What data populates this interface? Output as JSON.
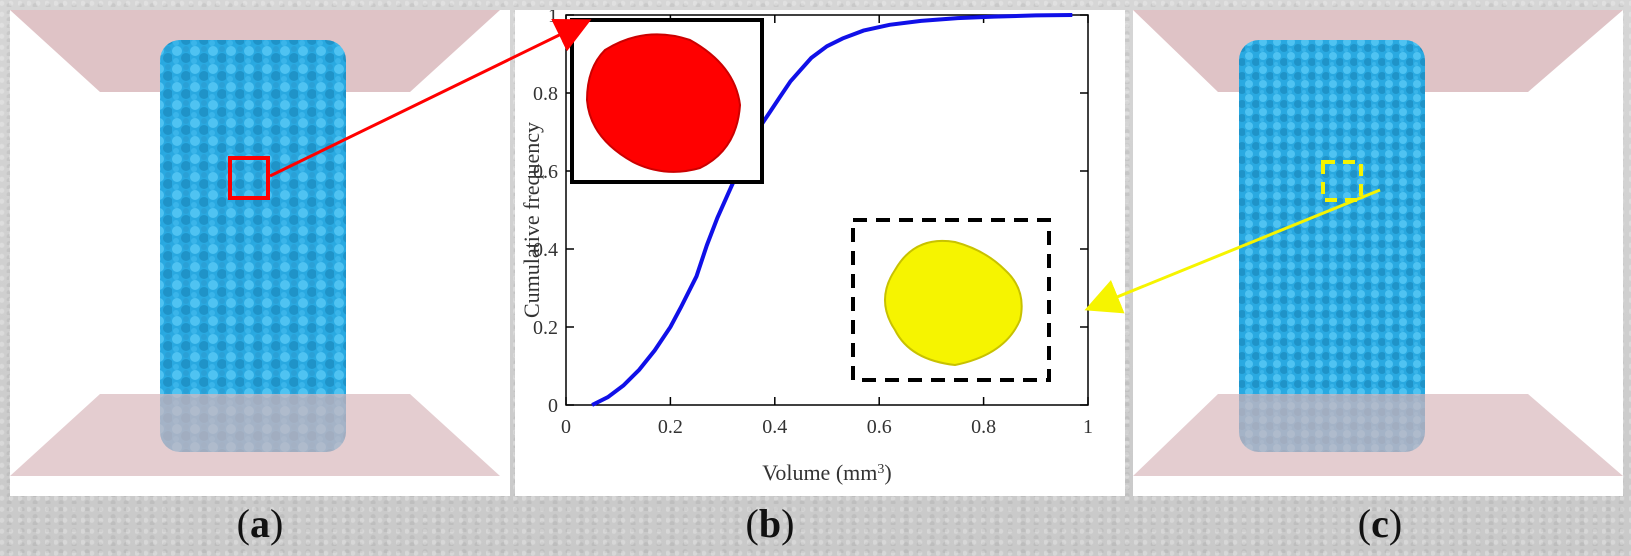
{
  "labels": {
    "a": "a",
    "b": "b",
    "c": "c"
  },
  "colors": {
    "specimen": "#29a9e1",
    "platen": "#d9b8bc",
    "curve": "#1010e8",
    "red": "#ff0000",
    "yellow": "#f6f400",
    "frame": "#000000"
  },
  "chart_data": {
    "type": "line",
    "xlabel": "Volume (mm",
    "xlabel_sup": "3",
    "xlabel_close": ")",
    "ylabel": "Cumulative frequency",
    "xlim": [
      0,
      1
    ],
    "ylim": [
      0,
      1
    ],
    "x_ticks": [
      "0",
      "0.2",
      "0.4",
      "0.6",
      "0.8",
      "1"
    ],
    "y_ticks": [
      "0",
      "0.2",
      "0.4",
      "0.6",
      "0.8",
      "1"
    ],
    "grid": false,
    "series": [
      {
        "x": [
          0.05,
          0.08,
          0.11,
          0.14,
          0.17,
          0.2,
          0.22,
          0.25,
          0.27,
          0.29,
          0.31,
          0.33,
          0.35,
          0.37,
          0.39,
          0.41,
          0.43,
          0.45,
          0.47,
          0.5,
          0.53,
          0.57,
          0.62,
          0.68,
          0.75,
          0.82,
          0.9,
          0.97
        ],
        "y": [
          0.0,
          0.02,
          0.05,
          0.09,
          0.14,
          0.2,
          0.25,
          0.33,
          0.41,
          0.48,
          0.54,
          0.6,
          0.66,
          0.71,
          0.75,
          0.79,
          0.83,
          0.86,
          0.89,
          0.92,
          0.94,
          0.96,
          0.975,
          0.985,
          0.992,
          0.996,
          0.999,
          1.0
        ]
      }
    ]
  }
}
